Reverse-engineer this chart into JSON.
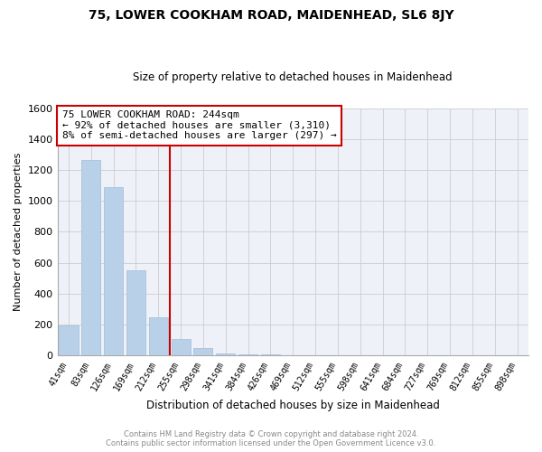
{
  "title1": "75, LOWER COOKHAM ROAD, MAIDENHEAD, SL6 8JY",
  "title2": "Size of property relative to detached houses in Maidenhead",
  "xlabel": "Distribution of detached houses by size in Maidenhead",
  "ylabel": "Number of detached properties",
  "footer1": "Contains HM Land Registry data © Crown copyright and database right 2024.",
  "footer2": "Contains public sector information licensed under the Open Government Licence v3.0.",
  "annotation_line1": "75 LOWER COOKHAM ROAD: 244sqm",
  "annotation_line2": "← 92% of detached houses are smaller (3,310)",
  "annotation_line3": "8% of semi-detached houses are larger (297) →",
  "categories": [
    "41sqm",
    "83sqm",
    "126sqm",
    "169sqm",
    "212sqm",
    "255sqm",
    "298sqm",
    "341sqm",
    "384sqm",
    "426sqm",
    "469sqm",
    "512sqm",
    "555sqm",
    "598sqm",
    "641sqm",
    "684sqm",
    "727sqm",
    "769sqm",
    "812sqm",
    "855sqm",
    "898sqm"
  ],
  "values": [
    195,
    1265,
    1090,
    550,
    250,
    105,
    50,
    15,
    8,
    5,
    3,
    2,
    1,
    1,
    0,
    1,
    0,
    0,
    0,
    0,
    0
  ],
  "bar_color": "#b8d0e8",
  "bar_edge_color": "#a0bcd8",
  "vline_color": "#cc0000",
  "vline_x": 4.5,
  "annotation_box_color": "#cc0000",
  "annotation_text_color": "#000000",
  "ylim": [
    0,
    1600
  ],
  "yticks": [
    0,
    200,
    400,
    600,
    800,
    1000,
    1200,
    1400,
    1600
  ],
  "grid_color": "#cccccc",
  "background_color": "#ffffff",
  "plot_bg_color": "#eef2f8",
  "fig_width": 6.0,
  "fig_height": 5.0,
  "tick_rotation": 60
}
